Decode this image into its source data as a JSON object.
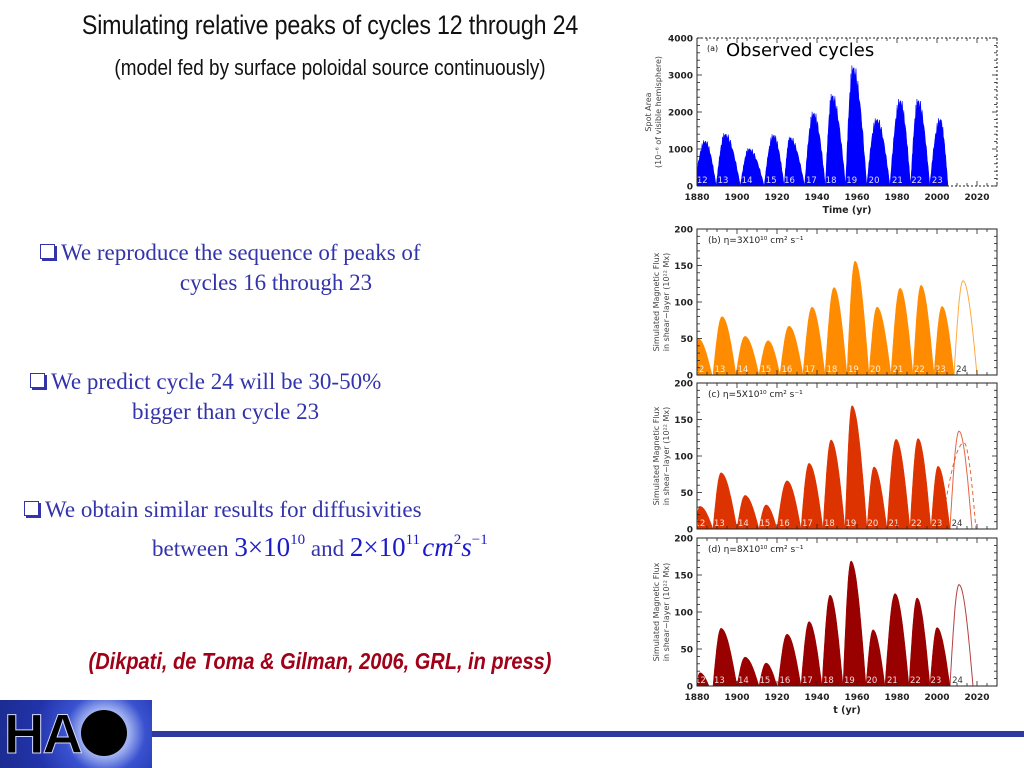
{
  "slide": {
    "title": "Simulating relative peaks of cycles 12 through 24",
    "subtitle": "(model fed by surface poloidal source continuously)",
    "bullets": [
      {
        "line1": "We reproduce the sequence of peaks of",
        "line2": "cycles 16 through 23"
      },
      {
        "line1": "We predict cycle 24 will be 30-50%",
        "line2": "bigger than cycle 23"
      },
      {
        "line1": "We obtain similar results for diffusivities",
        "line2_prefix": "between",
        "math1_base": "3×10",
        "math1_exp": "10",
        "and": "and",
        "math2_base": "2×10",
        "math2_exp": "11",
        "unit_cm": "cm",
        "unit_cm_exp": "2",
        "unit_s": "s",
        "unit_s_exp": "−1"
      }
    ],
    "citation": "(Dikpati, de Toma & Gilman, 2006, GRL, in press)",
    "logo_text": "HA",
    "logo_name": "HAO"
  },
  "colors": {
    "observed": "#0000ff",
    "eta3": "#ff8c00",
    "eta5": "#dd3300",
    "eta8": "#990000",
    "bullet_text": "#3333aa",
    "citation": "#a00018"
  },
  "chart_data": [
    {
      "id": "a",
      "type": "area",
      "panel_label": "(a)",
      "title": "Observed cycles",
      "xlabel": "Time (yr)",
      "ylabel_line1": "Spot Area",
      "ylabel_line2": "(10⁻⁶ of visible hemisphere)",
      "xlim": [
        1880,
        2030
      ],
      "ylim": [
        0,
        4000
      ],
      "xticks": [
        1880,
        1900,
        1920,
        1940,
        1960,
        1980,
        2000,
        2020
      ],
      "yticks": [
        0,
        1000,
        2000,
        3000,
        4000
      ],
      "color_key": "observed",
      "cycles": [
        {
          "n": "12",
          "start": 1878.9,
          "peak_year": 1884.0,
          "end": 1889.6,
          "peak": 1280
        },
        {
          "n": "13",
          "start": 1889.6,
          "peak_year": 1894.0,
          "end": 1901.7,
          "peak": 1480
        },
        {
          "n": "14",
          "start": 1901.7,
          "peak_year": 1906.0,
          "end": 1913.6,
          "peak": 1060
        },
        {
          "n": "15",
          "start": 1913.6,
          "peak_year": 1918.2,
          "end": 1923.6,
          "peak": 1450
        },
        {
          "n": "16",
          "start": 1923.6,
          "peak_year": 1926.5,
          "end": 1933.8,
          "peak": 1380
        },
        {
          "n": "17",
          "start": 1933.8,
          "peak_year": 1938.2,
          "end": 1944.2,
          "peak": 2080
        },
        {
          "n": "18",
          "start": 1944.2,
          "peak_year": 1947.5,
          "end": 1954.3,
          "peak": 2580
        },
        {
          "n": "19",
          "start": 1954.3,
          "peak_year": 1958.0,
          "end": 1964.9,
          "peak": 3380
        },
        {
          "n": "20",
          "start": 1964.9,
          "peak_year": 1969.8,
          "end": 1976.5,
          "peak": 1900
        },
        {
          "n": "21",
          "start": 1976.5,
          "peak_year": 1981.5,
          "end": 1986.8,
          "peak": 2440
        },
        {
          "n": "22",
          "start": 1986.8,
          "peak_year": 1990.5,
          "end": 1996.4,
          "peak": 2440
        },
        {
          "n": "23",
          "start": 1996.4,
          "peak_year": 2001.5,
          "end": 2005.5,
          "peak": 1900
        }
      ]
    },
    {
      "id": "b",
      "type": "area",
      "panel_label": "(b)",
      "title": "η=3X10¹⁰ cm² s⁻¹",
      "xlabel": "",
      "ylabel_line1": "Simulated Magnetic Flux",
      "ylabel_line2": "in shear−layer (10²² Mx)",
      "xlim": [
        1880,
        2030
      ],
      "ylim": [
        0,
        200
      ],
      "yticks": [
        0,
        50,
        100,
        150,
        200
      ],
      "color_key": "eta3",
      "cycles": [
        {
          "n": "12",
          "start": 1879,
          "peak_year": 1880.5,
          "end": 1887.5,
          "peak": 50
        },
        {
          "n": "13",
          "start": 1888,
          "peak_year": 1892.5,
          "end": 1899.5,
          "peak": 80
        },
        {
          "n": "14",
          "start": 1899.5,
          "peak_year": 1904,
          "end": 1911,
          "peak": 53
        },
        {
          "n": "15",
          "start": 1911,
          "peak_year": 1915.5,
          "end": 1921.5,
          "peak": 47
        },
        {
          "n": "16",
          "start": 1921.5,
          "peak_year": 1926,
          "end": 1933,
          "peak": 67
        },
        {
          "n": "17",
          "start": 1933,
          "peak_year": 1937.5,
          "end": 1944,
          "peak": 93
        },
        {
          "n": "18",
          "start": 1944,
          "peak_year": 1948.5,
          "end": 1955,
          "peak": 120
        },
        {
          "n": "19",
          "start": 1955,
          "peak_year": 1959,
          "end": 1966,
          "peak": 156
        },
        {
          "n": "20",
          "start": 1966,
          "peak_year": 1970,
          "end": 1977,
          "peak": 93
        },
        {
          "n": "21",
          "start": 1977,
          "peak_year": 1981.5,
          "end": 1988,
          "peak": 119
        },
        {
          "n": "22",
          "start": 1988,
          "peak_year": 1992,
          "end": 1998.5,
          "peak": 123
        },
        {
          "n": "23",
          "start": 1998.5,
          "peak_year": 2002.5,
          "end": 2008.5,
          "peak": 94
        },
        {
          "n": "24",
          "start": 2008.5,
          "peak_year": 2013,
          "end": 2020,
          "peak": 129,
          "predicted": true
        }
      ]
    },
    {
      "id": "c",
      "type": "area",
      "panel_label": "(c)",
      "title": "η=5X10¹⁰ cm² s⁻¹",
      "xlabel": "",
      "ylabel_line1": "Simulated Magnetic Flux",
      "ylabel_line2": "in shear−layer (10²² Mx)",
      "xlim": [
        1880,
        2030
      ],
      "ylim": [
        0,
        200
      ],
      "yticks": [
        0,
        50,
        100,
        150,
        200
      ],
      "color_key": "eta5",
      "cycles": [
        {
          "n": "12",
          "start": 1879,
          "peak_year": 1881.5,
          "end": 1888,
          "peak": 31
        },
        {
          "n": "13",
          "start": 1888,
          "peak_year": 1892,
          "end": 1900,
          "peak": 77
        },
        {
          "n": "14",
          "start": 1900,
          "peak_year": 1904,
          "end": 1911,
          "peak": 46
        },
        {
          "n": "15",
          "start": 1911,
          "peak_year": 1914.5,
          "end": 1920,
          "peak": 33
        },
        {
          "n": "16",
          "start": 1920,
          "peak_year": 1925,
          "end": 1932,
          "peak": 66
        },
        {
          "n": "17",
          "start": 1932,
          "peak_year": 1936,
          "end": 1943,
          "peak": 90
        },
        {
          "n": "18",
          "start": 1943,
          "peak_year": 1947,
          "end": 1954,
          "peak": 122
        },
        {
          "n": "19",
          "start": 1954,
          "peak_year": 1957.5,
          "end": 1965,
          "peak": 169
        },
        {
          "n": "20",
          "start": 1965,
          "peak_year": 1968.5,
          "end": 1975,
          "peak": 85
        },
        {
          "n": "21",
          "start": 1975,
          "peak_year": 1979.5,
          "end": 1986.5,
          "peak": 123
        },
        {
          "n": "22",
          "start": 1986.5,
          "peak_year": 1990.5,
          "end": 1997,
          "peak": 124
        },
        {
          "n": "23",
          "start": 1997,
          "peak_year": 2000.5,
          "end": 2006.5,
          "peak": 86
        },
        {
          "n": "24",
          "start": 2006.5,
          "peak_year": 2011,
          "end": 2017.5,
          "peak": 134,
          "predicted": true
        },
        {
          "n": "24-alt",
          "start": 2002,
          "peak_year": 2013.5,
          "end": 2019.5,
          "peak": 118,
          "predicted": true,
          "dashed": true
        }
      ]
    },
    {
      "id": "d",
      "type": "area",
      "panel_label": "(d)",
      "title": "η=8X10¹⁰ cm² s⁻¹",
      "xlabel": "t (yr)",
      "ylabel_line1": "Simulated Magnetic Flux",
      "ylabel_line2": "in shear−layer (10²² Mx)",
      "xlim": [
        1880,
        2030
      ],
      "ylim": [
        0,
        200
      ],
      "xticks": [
        1880,
        1900,
        1920,
        1940,
        1960,
        1980,
        2000,
        2020
      ],
      "yticks": [
        0,
        50,
        100,
        150,
        200
      ],
      "color_key": "eta8",
      "cycles": [
        {
          "n": "12",
          "start": 1879.5,
          "peak_year": 1881.5,
          "end": 1886,
          "peak": 18
        },
        {
          "n": "13",
          "start": 1888,
          "peak_year": 1892,
          "end": 1900,
          "peak": 78
        },
        {
          "n": "14",
          "start": 1900,
          "peak_year": 1904,
          "end": 1911,
          "peak": 39
        },
        {
          "n": "15",
          "start": 1911,
          "peak_year": 1914.5,
          "end": 1920,
          "peak": 31
        },
        {
          "n": "16",
          "start": 1920.5,
          "peak_year": 1925,
          "end": 1932,
          "peak": 70
        },
        {
          "n": "17",
          "start": 1932,
          "peak_year": 1936,
          "end": 1942.5,
          "peak": 87
        },
        {
          "n": "18",
          "start": 1942.5,
          "peak_year": 1946.5,
          "end": 1953,
          "peak": 123
        },
        {
          "n": "19",
          "start": 1953,
          "peak_year": 1957,
          "end": 1964.5,
          "peak": 169
        },
        {
          "n": "20",
          "start": 1964.5,
          "peak_year": 1968,
          "end": 1974,
          "peak": 76
        },
        {
          "n": "21",
          "start": 1974,
          "peak_year": 1979,
          "end": 1986,
          "peak": 125
        },
        {
          "n": "22",
          "start": 1986,
          "peak_year": 1990,
          "end": 1996.5,
          "peak": 119
        },
        {
          "n": "23",
          "start": 1996.5,
          "peak_year": 2000,
          "end": 2006.5,
          "peak": 79
        },
        {
          "n": "24",
          "start": 2006.5,
          "peak_year": 2011,
          "end": 2018,
          "peak": 137,
          "predicted": true
        }
      ]
    }
  ]
}
